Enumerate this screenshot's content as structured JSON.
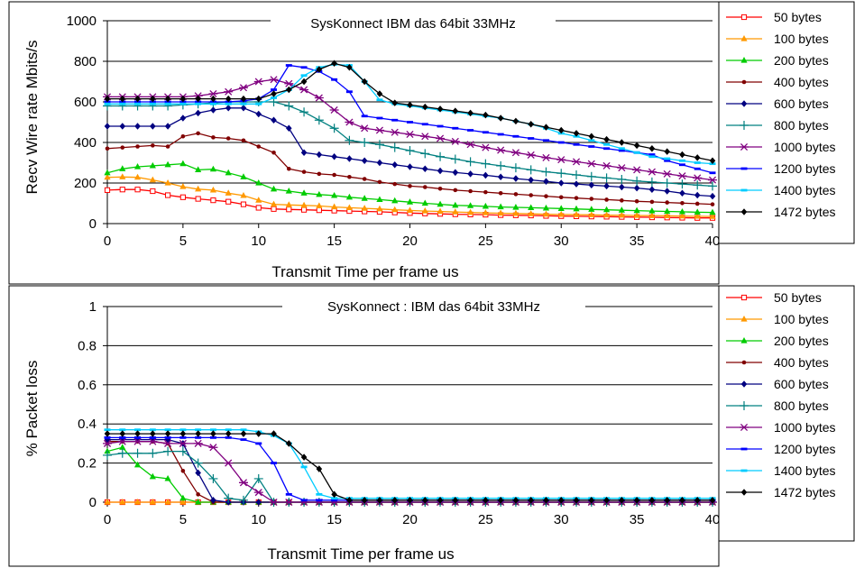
{
  "chart_data": [
    {
      "type": "line",
      "title": "SysKonnect IBM das 64bit 33MHz",
      "xlabel": "Transmit Time per frame us",
      "ylabel": "Recv Wire rate Mbits/s",
      "xlim": [
        0,
        40
      ],
      "ylim": [
        0,
        1000
      ],
      "xticks": [
        "0",
        "5",
        "10",
        "15",
        "20",
        "25",
        "30",
        "35",
        "40"
      ],
      "yticks": [
        "0",
        "200",
        "400",
        "600",
        "800",
        "1000"
      ],
      "grid": "horizontal",
      "legend_position": "right",
      "x": [
        0,
        1,
        2,
        3,
        4,
        5,
        6,
        7,
        8,
        9,
        10,
        11,
        12,
        13,
        14,
        15,
        16,
        17,
        18,
        19,
        20,
        21,
        22,
        23,
        24,
        25,
        26,
        27,
        28,
        29,
        30,
        31,
        32,
        33,
        34,
        35,
        36,
        37,
        38,
        39,
        40
      ],
      "series": [
        {
          "name": "50 bytes",
          "color": "#FF0000",
          "marker": "square-open",
          "values": [
            165,
            168,
            168,
            160,
            140,
            130,
            122,
            115,
            108,
            95,
            78,
            72,
            70,
            68,
            66,
            64,
            62,
            60,
            58,
            55,
            52,
            50,
            48,
            46,
            45,
            44,
            42,
            41,
            40,
            38,
            37,
            36,
            35,
            34,
            33,
            32,
            31,
            30,
            29,
            28,
            28
          ]
        },
        {
          "name": "100 bytes",
          "color": "#FF9900",
          "marker": "triangle",
          "values": [
            228,
            230,
            228,
            215,
            200,
            182,
            170,
            165,
            150,
            138,
            115,
            95,
            92,
            90,
            87,
            82,
            78,
            75,
            72,
            68,
            65,
            62,
            60,
            57,
            55,
            53,
            51,
            50,
            48,
            46,
            45,
            44,
            43,
            42,
            41,
            40,
            39,
            38,
            37,
            36,
            35
          ]
        },
        {
          "name": "200 bytes",
          "color": "#00CC00",
          "marker": "triangle",
          "values": [
            250,
            270,
            280,
            285,
            290,
            295,
            265,
            268,
            250,
            230,
            200,
            170,
            160,
            150,
            143,
            138,
            130,
            124,
            118,
            112,
            106,
            100,
            95,
            90,
            88,
            85,
            82,
            80,
            78,
            76,
            74,
            72,
            70,
            68,
            66,
            64,
            62,
            60,
            58,
            56,
            55
          ]
        },
        {
          "name": "400 bytes",
          "color": "#800000",
          "marker": "dot",
          "values": [
            370,
            375,
            380,
            385,
            380,
            430,
            445,
            425,
            420,
            410,
            380,
            350,
            270,
            255,
            245,
            240,
            230,
            220,
            205,
            195,
            185,
            180,
            172,
            165,
            160,
            155,
            150,
            145,
            140,
            135,
            130,
            126,
            122,
            118,
            114,
            110,
            107,
            104,
            101,
            98,
            95
          ]
        },
        {
          "name": "600 bytes",
          "color": "#000080",
          "marker": "diamond",
          "values": [
            480,
            480,
            480,
            480,
            480,
            520,
            545,
            560,
            570,
            570,
            540,
            510,
            470,
            350,
            340,
            330,
            320,
            310,
            300,
            290,
            280,
            270,
            260,
            252,
            245,
            238,
            230,
            222,
            215,
            208,
            200,
            195,
            190,
            185,
            180,
            175,
            168,
            160,
            150,
            140,
            135
          ]
        },
        {
          "name": "800 bytes",
          "color": "#008080",
          "marker": "plus",
          "values": [
            580,
            580,
            580,
            580,
            580,
            585,
            590,
            595,
            600,
            600,
            600,
            600,
            580,
            550,
            510,
            470,
            410,
            400,
            390,
            375,
            360,
            345,
            330,
            318,
            305,
            295,
            285,
            275,
            265,
            255,
            248,
            240,
            232,
            225,
            218,
            210,
            205,
            200,
            195,
            190,
            185
          ]
        },
        {
          "name": "1000 bytes",
          "color": "#800080",
          "marker": "star",
          "values": [
            625,
            625,
            625,
            625,
            625,
            625,
            630,
            640,
            650,
            670,
            700,
            710,
            690,
            660,
            620,
            560,
            500,
            470,
            460,
            450,
            440,
            430,
            420,
            405,
            390,
            375,
            362,
            350,
            338,
            325,
            315,
            305,
            295,
            285,
            275,
            265,
            255,
            245,
            235,
            225,
            215
          ]
        },
        {
          "name": "1200 bytes",
          "color": "#0000FF",
          "marker": "dash",
          "values": [
            600,
            600,
            600,
            600,
            600,
            600,
            600,
            600,
            600,
            605,
            615,
            660,
            780,
            770,
            750,
            710,
            650,
            530,
            520,
            510,
            500,
            490,
            480,
            470,
            460,
            450,
            440,
            430,
            420,
            410,
            400,
            390,
            380,
            370,
            360,
            350,
            340,
            310,
            290,
            270,
            250
          ]
        },
        {
          "name": "1400 bytes",
          "color": "#00CCFF",
          "marker": "dash",
          "values": [
            590,
            590,
            590,
            590,
            590,
            590,
            590,
            590,
            590,
            590,
            590,
            620,
            660,
            730,
            770,
            785,
            780,
            700,
            610,
            590,
            580,
            570,
            560,
            550,
            540,
            530,
            520,
            505,
            490,
            470,
            445,
            430,
            410,
            390,
            370,
            350,
            330,
            320,
            310,
            300,
            295
          ]
        },
        {
          "name": "1472 bytes",
          "color": "#000000",
          "marker": "diamond",
          "values": [
            615,
            615,
            615,
            615,
            615,
            615,
            615,
            615,
            615,
            615,
            615,
            640,
            660,
            700,
            760,
            790,
            770,
            700,
            640,
            595,
            585,
            575,
            565,
            555,
            545,
            535,
            520,
            505,
            490,
            475,
            460,
            445,
            430,
            415,
            400,
            385,
            370,
            355,
            340,
            325,
            310
          ]
        }
      ]
    },
    {
      "type": "line",
      "title": "SysKonnect : IBM das 64bit 33MHz",
      "xlabel": "Transmit Time per frame us",
      "ylabel": "% Packet loss",
      "xlim": [
        0,
        40
      ],
      "ylim": [
        0,
        1
      ],
      "xticks": [
        "0",
        "5",
        "10",
        "15",
        "20",
        "25",
        "30",
        "35",
        "40"
      ],
      "yticks": [
        "0",
        "0.2",
        "0.4",
        "0.6",
        "0.8",
        "1"
      ],
      "grid": "horizontal",
      "legend_position": "right",
      "x": [
        0,
        1,
        2,
        3,
        4,
        5,
        6,
        7,
        8,
        9,
        10,
        11,
        12,
        13,
        14,
        15,
        16,
        17,
        18,
        19,
        20,
        21,
        22,
        23,
        24,
        25,
        26,
        27,
        28,
        29,
        30,
        31,
        32,
        33,
        34,
        35,
        36,
        37,
        38,
        39,
        40
      ],
      "series": [
        {
          "name": "50 bytes",
          "color": "#FF0000",
          "marker": "square-open",
          "values": [
            0,
            0,
            0,
            0,
            0,
            0,
            0,
            0,
            0,
            0,
            0,
            0,
            0,
            0,
            0,
            0,
            0,
            0,
            0,
            0,
            0,
            0,
            0,
            0,
            0,
            0,
            0,
            0,
            0,
            0,
            0,
            0,
            0,
            0,
            0,
            0,
            0,
            0,
            0,
            0,
            0
          ]
        },
        {
          "name": "100 bytes",
          "color": "#FF9900",
          "marker": "triangle",
          "values": [
            0,
            0,
            0,
            0,
            0,
            0,
            0,
            0,
            0,
            0,
            0,
            0,
            0,
            0,
            0,
            0,
            0,
            0,
            0,
            0,
            0,
            0,
            0,
            0,
            0,
            0,
            0,
            0,
            0,
            0,
            0,
            0,
            0,
            0,
            0,
            0,
            0,
            0,
            0,
            0,
            0
          ]
        },
        {
          "name": "200 bytes",
          "color": "#00CC00",
          "marker": "triangle",
          "values": [
            0.26,
            0.28,
            0.19,
            0.13,
            0.12,
            0.02,
            0,
            0,
            0,
            0,
            0,
            0,
            0,
            0,
            0,
            0,
            0,
            0,
            0,
            0,
            0,
            0,
            0,
            0,
            0,
            0,
            0,
            0,
            0,
            0,
            0,
            0,
            0,
            0,
            0,
            0,
            0,
            0,
            0,
            0,
            0
          ]
        },
        {
          "name": "400 bytes",
          "color": "#800000",
          "marker": "dot",
          "values": [
            0.31,
            0.31,
            0.31,
            0.31,
            0.3,
            0.16,
            0.04,
            0,
            0,
            0,
            0,
            0,
            0,
            0,
            0,
            0,
            0,
            0,
            0,
            0,
            0,
            0,
            0,
            0,
            0,
            0,
            0,
            0,
            0,
            0,
            0,
            0,
            0,
            0,
            0,
            0,
            0,
            0,
            0,
            0,
            0
          ]
        },
        {
          "name": "600 bytes",
          "color": "#000080",
          "marker": "diamond",
          "values": [
            0.32,
            0.32,
            0.32,
            0.32,
            0.32,
            0.3,
            0.15,
            0.01,
            0,
            0,
            0,
            0,
            0,
            0,
            0,
            0,
            0,
            0,
            0,
            0,
            0,
            0,
            0,
            0,
            0,
            0,
            0,
            0,
            0,
            0,
            0,
            0,
            0,
            0,
            0,
            0,
            0,
            0,
            0,
            0,
            0
          ]
        },
        {
          "name": "800 bytes",
          "color": "#008080",
          "marker": "plus",
          "values": [
            0.24,
            0.25,
            0.25,
            0.25,
            0.26,
            0.26,
            0.2,
            0.12,
            0.02,
            0.01,
            0.12,
            0,
            0,
            0,
            0,
            0,
            0,
            0,
            0,
            0,
            0,
            0,
            0,
            0,
            0,
            0,
            0,
            0,
            0,
            0,
            0,
            0,
            0,
            0,
            0,
            0,
            0,
            0,
            0,
            0,
            0
          ]
        },
        {
          "name": "1000 bytes",
          "color": "#800080",
          "marker": "star",
          "values": [
            0.3,
            0.31,
            0.31,
            0.31,
            0.3,
            0.3,
            0.3,
            0.28,
            0.2,
            0.1,
            0.05,
            0,
            0,
            0,
            0,
            0,
            0,
            0,
            0,
            0,
            0,
            0,
            0,
            0,
            0,
            0,
            0,
            0,
            0,
            0,
            0,
            0,
            0,
            0,
            0,
            0,
            0,
            0,
            0,
            0,
            0
          ]
        },
        {
          "name": "1200 bytes",
          "color": "#0000FF",
          "marker": "dash",
          "values": [
            0.33,
            0.33,
            0.33,
            0.33,
            0.33,
            0.33,
            0.33,
            0.33,
            0.33,
            0.32,
            0.3,
            0.2,
            0.04,
            0.01,
            0.01,
            0.01,
            0.01,
            0.01,
            0.01,
            0.01,
            0.01,
            0.01,
            0.01,
            0.01,
            0.01,
            0.01,
            0.01,
            0.01,
            0.01,
            0.01,
            0.01,
            0.01,
            0.01,
            0.01,
            0.01,
            0.01,
            0.01,
            0.01,
            0.01,
            0.01,
            0.01
          ]
        },
        {
          "name": "1400 bytes",
          "color": "#00CCFF",
          "marker": "dash",
          "values": [
            0.37,
            0.37,
            0.37,
            0.37,
            0.37,
            0.37,
            0.37,
            0.37,
            0.37,
            0.37,
            0.36,
            0.34,
            0.3,
            0.18,
            0.04,
            0.02,
            0.02,
            0.02,
            0.02,
            0.02,
            0.02,
            0.02,
            0.02,
            0.02,
            0.02,
            0.02,
            0.02,
            0.02,
            0.02,
            0.02,
            0.02,
            0.02,
            0.02,
            0.02,
            0.02,
            0.02,
            0.02,
            0.02,
            0.02,
            0.02,
            0.02
          ]
        },
        {
          "name": "1472 bytes",
          "color": "#000000",
          "marker": "diamond",
          "values": [
            0.35,
            0.35,
            0.35,
            0.35,
            0.35,
            0.35,
            0.35,
            0.35,
            0.35,
            0.35,
            0.35,
            0.35,
            0.3,
            0.23,
            0.17,
            0.04,
            0.01,
            0.01,
            0.01,
            0.01,
            0.01,
            0.01,
            0.01,
            0.01,
            0.01,
            0.01,
            0.01,
            0.01,
            0.01,
            0.01,
            0.01,
            0.01,
            0.01,
            0.01,
            0.01,
            0.01,
            0.01,
            0.01,
            0.01,
            0.01,
            0.01
          ]
        }
      ]
    }
  ]
}
